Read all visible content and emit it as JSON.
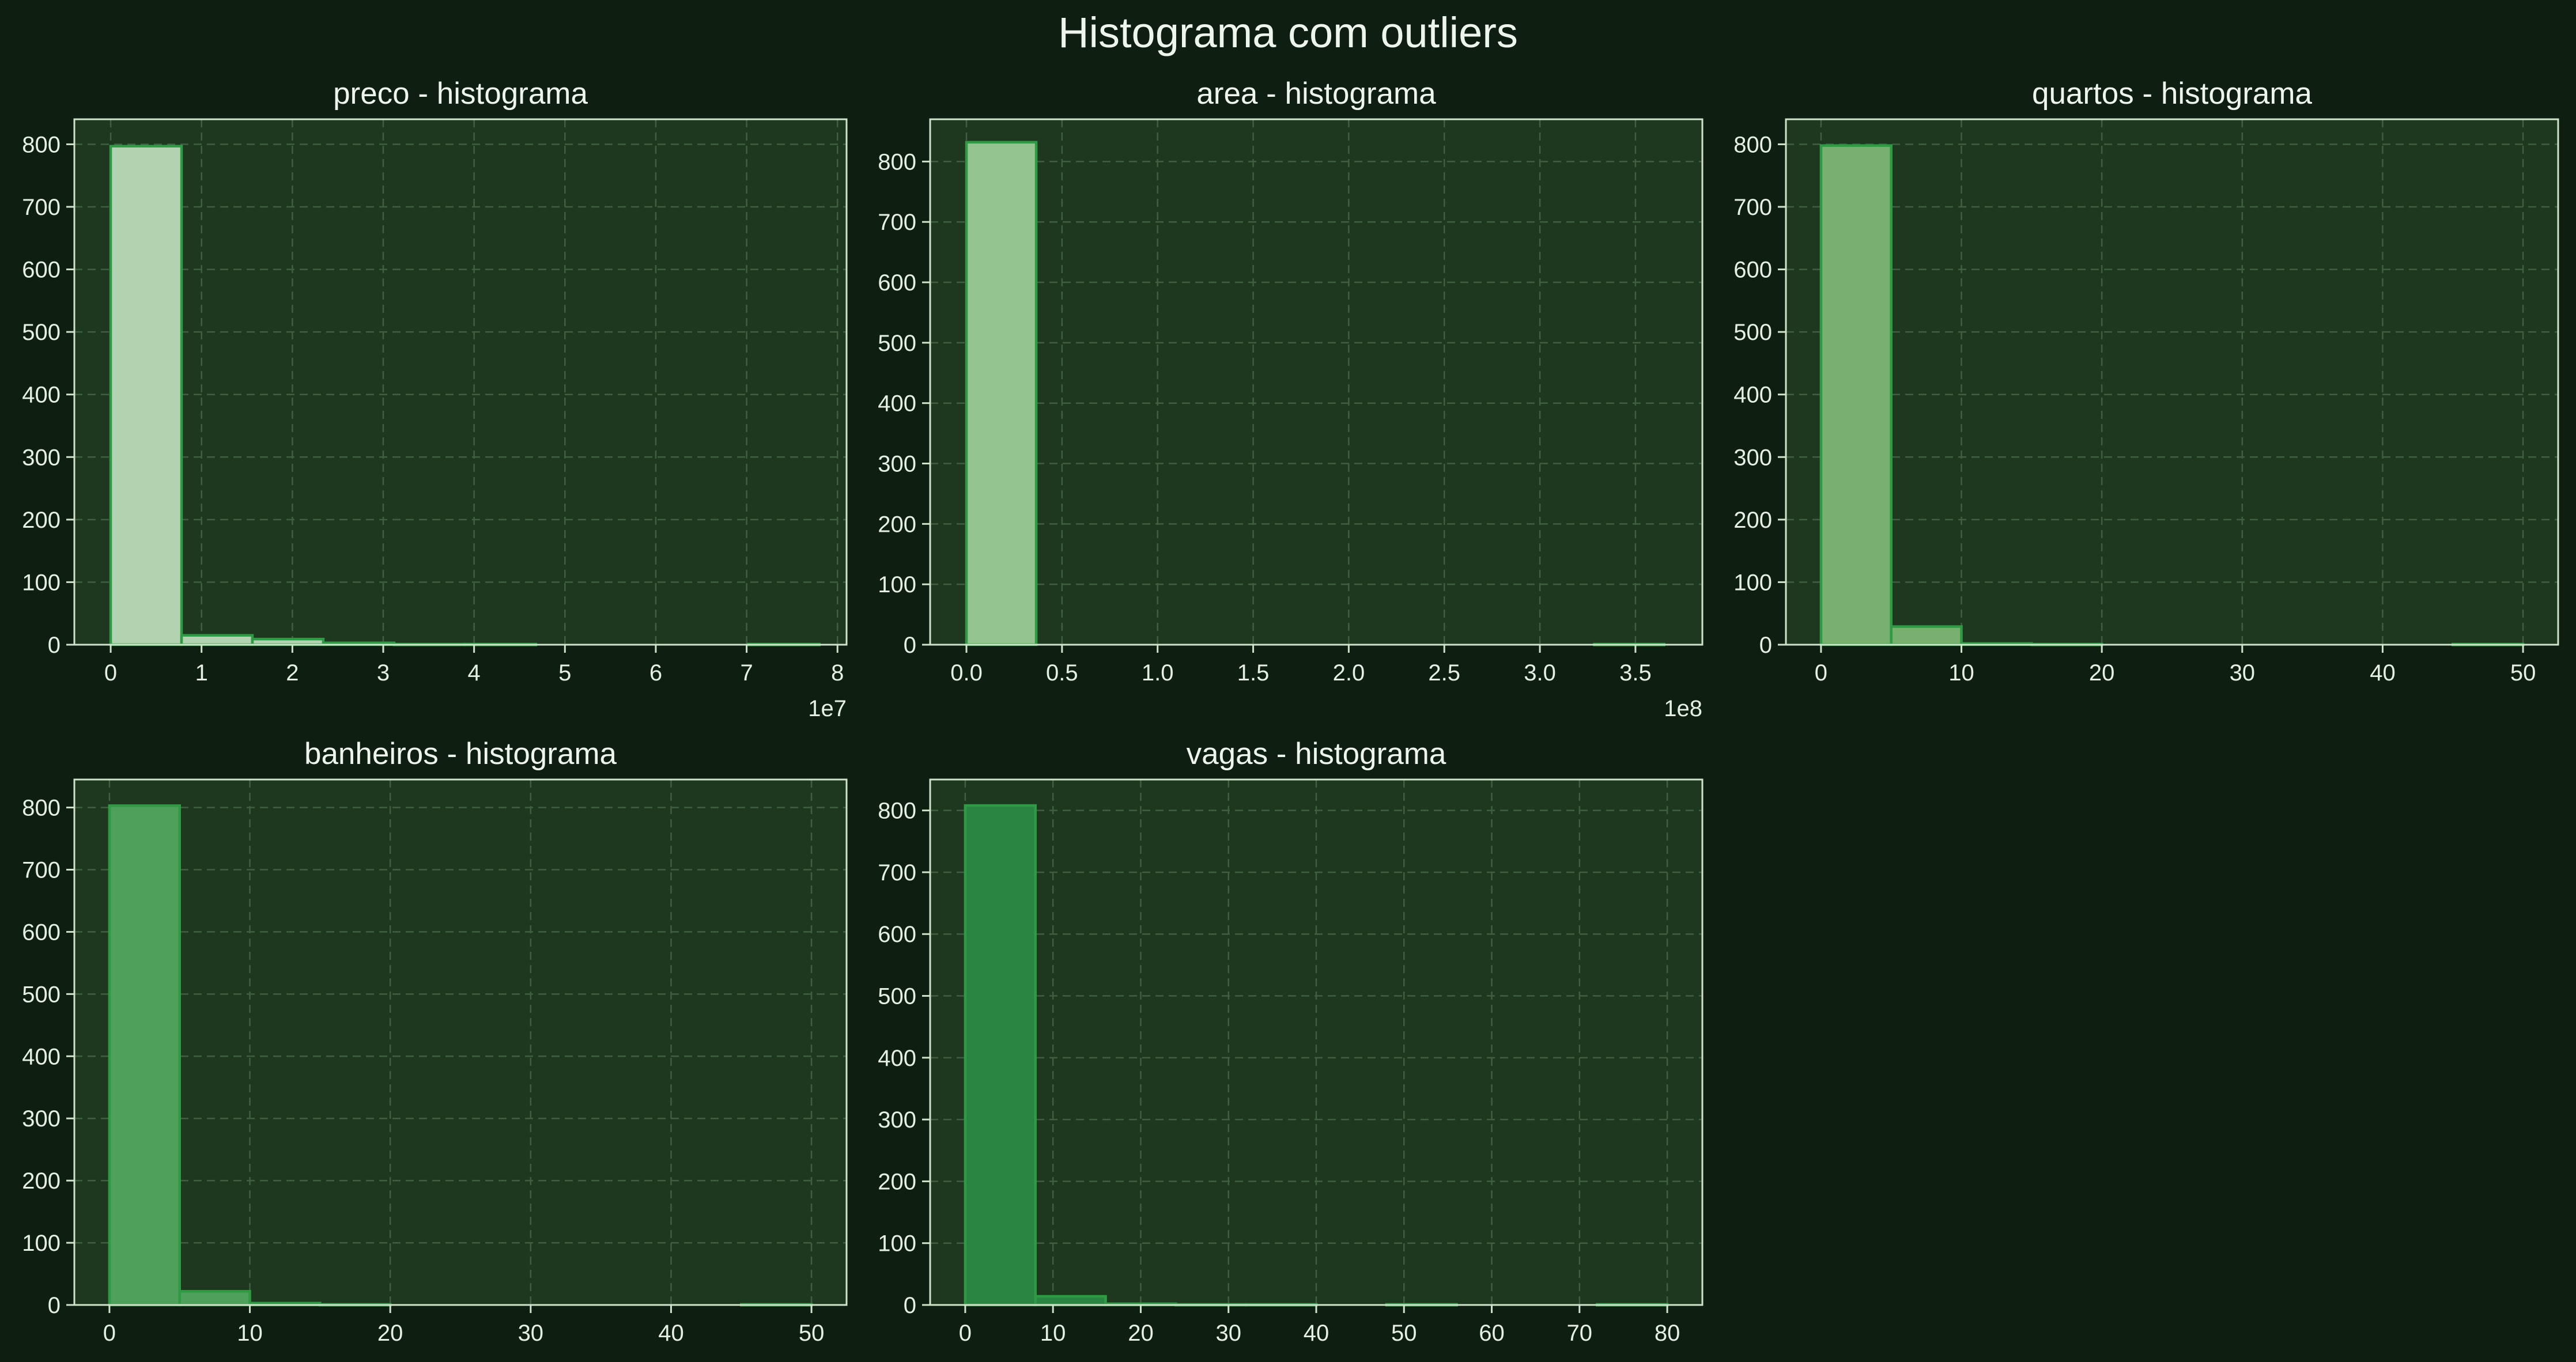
{
  "figure": {
    "suptitle": "Histograma com outliers"
  },
  "chart_data": [
    {
      "type": "bar",
      "title": "preco - histograma",
      "offset_text": "1e7",
      "xlim": [
        -0.4,
        8.1
      ],
      "ylim": [
        0,
        840
      ],
      "xticks": [
        0,
        1,
        2,
        3,
        4,
        5,
        6,
        7,
        8
      ],
      "yticks": [
        0,
        100,
        200,
        300,
        400,
        500,
        600,
        700,
        800
      ],
      "bin_edges": [
        0,
        0.78,
        1.56,
        2.34,
        3.12,
        3.9,
        4.68,
        5.46,
        6.24,
        7.02,
        7.8
      ],
      "counts": [
        797,
        15,
        9,
        3,
        1,
        1,
        0,
        0,
        0,
        1
      ],
      "bar_color": "#b3d3b0",
      "edge_color": "#2e9a44",
      "grid": true
    },
    {
      "type": "bar",
      "title": "area - histograma",
      "offset_text": "1e8",
      "xlim": [
        -0.19,
        3.85
      ],
      "ylim": [
        0,
        870
      ],
      "xticks": [
        0.0,
        0.5,
        1.0,
        1.5,
        2.0,
        2.5,
        3.0,
        3.5
      ],
      "xtick_labels": [
        "0.0",
        "0.5",
        "1.0",
        "1.5",
        "2.0",
        "2.5",
        "3.0",
        "3.5"
      ],
      "yticks": [
        0,
        100,
        200,
        300,
        400,
        500,
        600,
        700,
        800
      ],
      "bin_edges": [
        0,
        0.365,
        0.73,
        1.095,
        1.46,
        1.825,
        2.19,
        2.555,
        2.92,
        3.285,
        3.65
      ],
      "counts": [
        832,
        0,
        0,
        0,
        0,
        0,
        0,
        0,
        0,
        1
      ],
      "bar_color": "#94c48f",
      "edge_color": "#2e9a44",
      "grid": true
    },
    {
      "type": "bar",
      "title": "quartos - histograma",
      "offset_text": "",
      "xlim": [
        -2.5,
        52.5
      ],
      "ylim": [
        0,
        840
      ],
      "xticks": [
        0,
        10,
        20,
        30,
        40,
        50
      ],
      "yticks": [
        0,
        100,
        200,
        300,
        400,
        500,
        600,
        700,
        800
      ],
      "bin_edges": [
        0,
        5,
        10,
        15,
        20,
        25,
        30,
        35,
        40,
        45,
        50
      ],
      "counts": [
        798,
        29,
        2,
        1,
        0,
        0,
        0,
        0,
        0,
        1
      ],
      "bar_color": "#77b06f",
      "edge_color": "#2e9a44",
      "grid": true
    },
    {
      "type": "bar",
      "title": "banheiros - histograma",
      "offset_text": "",
      "xlim": [
        -2.5,
        52.5
      ],
      "ylim": [
        0,
        845
      ],
      "xticks": [
        0,
        10,
        20,
        30,
        40,
        50
      ],
      "yticks": [
        0,
        100,
        200,
        300,
        400,
        500,
        600,
        700,
        800
      ],
      "bin_edges": [
        0,
        5,
        10,
        15,
        20,
        25,
        30,
        35,
        40,
        45,
        50
      ],
      "counts": [
        803,
        22,
        3,
        1,
        0,
        0,
        0,
        0,
        0,
        1
      ],
      "bar_color": "#4fa05a",
      "edge_color": "#2e9a44",
      "grid": true
    },
    {
      "type": "bar",
      "title": "vagas - histograma",
      "offset_text": "",
      "xlim": [
        -4,
        84
      ],
      "ylim": [
        0,
        850
      ],
      "xticks": [
        0,
        10,
        20,
        30,
        40,
        50,
        60,
        70,
        80
      ],
      "yticks": [
        0,
        100,
        200,
        300,
        400,
        500,
        600,
        700,
        800
      ],
      "bin_edges": [
        0,
        8,
        16,
        24,
        32,
        40,
        48,
        56,
        64,
        72,
        80
      ],
      "counts": [
        808,
        14,
        2,
        1,
        1,
        0,
        1,
        0,
        0,
        1
      ],
      "bar_color": "#2b8542",
      "edge_color": "#2e9a44",
      "grid": true
    }
  ]
}
